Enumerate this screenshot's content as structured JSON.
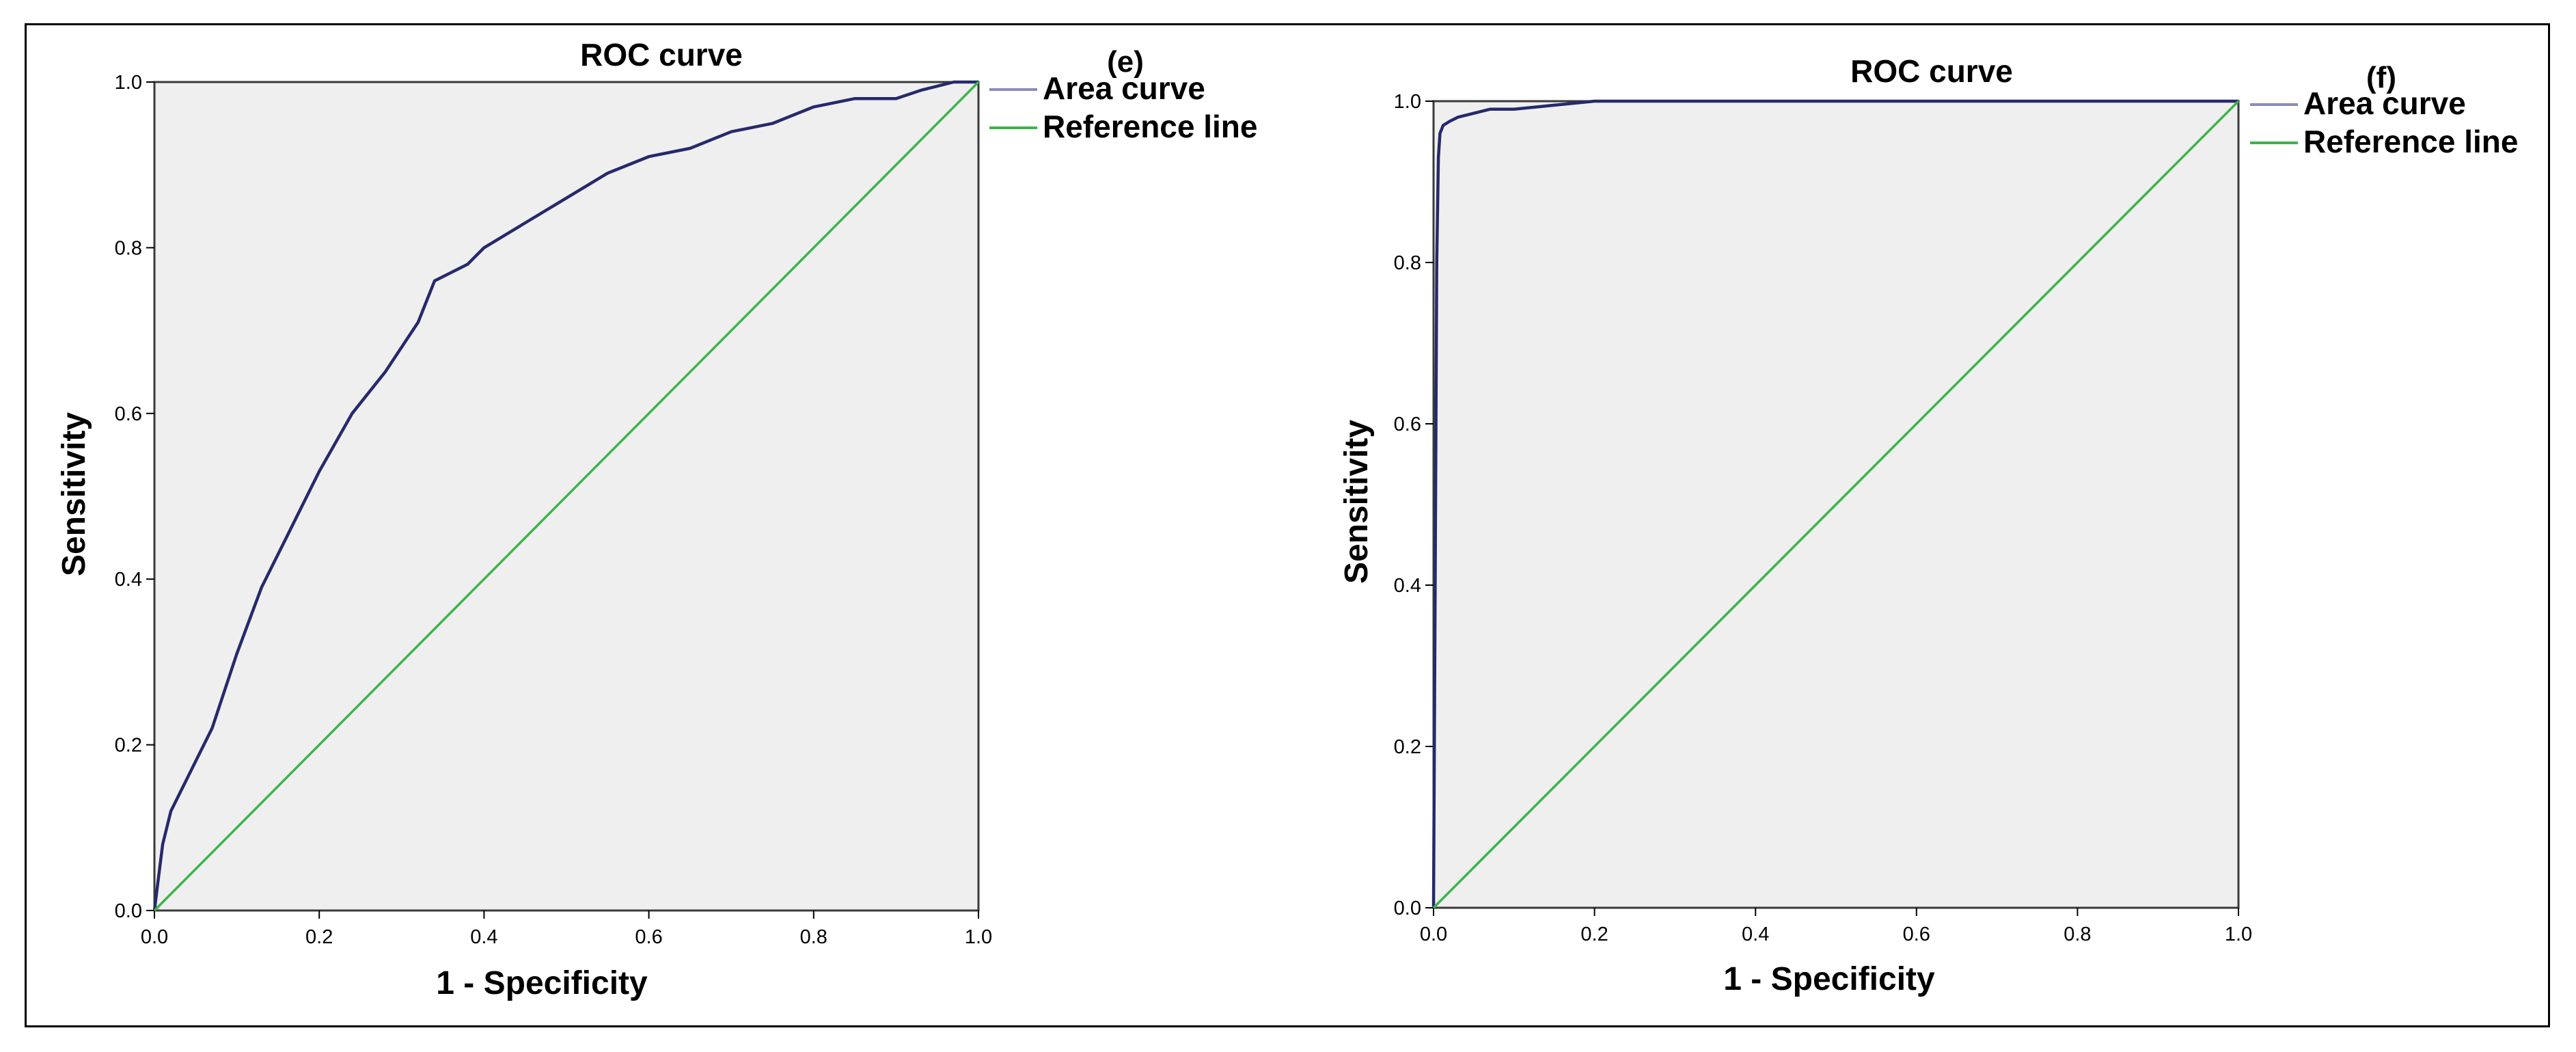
{
  "chart_data": [
    {
      "type": "line",
      "panel_label": "(e)",
      "title": "ROC curve",
      "xlabel": "1 - Specificity",
      "ylabel": "Sensitivity",
      "xlim": [
        0,
        1
      ],
      "ylim": [
        0,
        1
      ],
      "x_ticks": [
        "0.0",
        "0.2",
        "0.4",
        "0.6",
        "0.8",
        "1.0"
      ],
      "y_ticks": [
        "0.0",
        "0.2",
        "0.4",
        "0.6",
        "0.8",
        "1.0"
      ],
      "grid": false,
      "legend_position": "top-right outside",
      "colors": {
        "area_curve": "#262a6b",
        "reference_line": "#3cb44b",
        "plot_bg": "#efefef"
      },
      "series": [
        {
          "name": "Area curve",
          "x": [
            0,
            0.005,
            0.01,
            0.02,
            0.03,
            0.05,
            0.07,
            0.1,
            0.13,
            0.16,
            0.2,
            0.24,
            0.28,
            0.32,
            0.34,
            0.38,
            0.4,
            0.45,
            0.5,
            0.55,
            0.6,
            0.65,
            0.7,
            0.75,
            0.8,
            0.85,
            0.9,
            0.93,
            0.97,
            1.0
          ],
          "y": [
            0,
            0.04,
            0.08,
            0.12,
            0.14,
            0.18,
            0.22,
            0.31,
            0.39,
            0.45,
            0.53,
            0.6,
            0.65,
            0.71,
            0.76,
            0.78,
            0.8,
            0.83,
            0.86,
            0.89,
            0.91,
            0.92,
            0.94,
            0.95,
            0.97,
            0.98,
            0.98,
            0.99,
            1.0,
            1.0
          ]
        },
        {
          "name": "Reference line",
          "x": [
            0,
            1
          ],
          "y": [
            0,
            1
          ]
        }
      ]
    },
    {
      "type": "line",
      "panel_label": "(f)",
      "title": "ROC curve",
      "xlabel": "1 - Specificity",
      "ylabel": "Sensitivity",
      "xlim": [
        0,
        1
      ],
      "ylim": [
        0,
        1
      ],
      "x_ticks": [
        "0.0",
        "0.2",
        "0.4",
        "0.6",
        "0.8",
        "1.0"
      ],
      "y_ticks": [
        "0.0",
        "0.2",
        "0.4",
        "0.6",
        "0.8",
        "1.0"
      ],
      "grid": false,
      "legend_position": "top-right outside",
      "colors": {
        "area_curve": "#262a6b",
        "reference_line": "#3cb44b",
        "plot_bg": "#efefef"
      },
      "series": [
        {
          "name": "Area curve",
          "x": [
            0,
            0.002,
            0.004,
            0.006,
            0.008,
            0.012,
            0.02,
            0.03,
            0.05,
            0.07,
            0.1,
            0.15,
            0.2,
            0.3,
            0.5,
            0.8,
            1.0
          ],
          "y": [
            0,
            0.4,
            0.8,
            0.93,
            0.96,
            0.97,
            0.975,
            0.98,
            0.985,
            0.99,
            0.99,
            0.995,
            1.0,
            1.0,
            1.0,
            1.0,
            1.0
          ]
        },
        {
          "name": "Reference line",
          "x": [
            0,
            1
          ],
          "y": [
            0,
            1
          ]
        }
      ]
    }
  ]
}
